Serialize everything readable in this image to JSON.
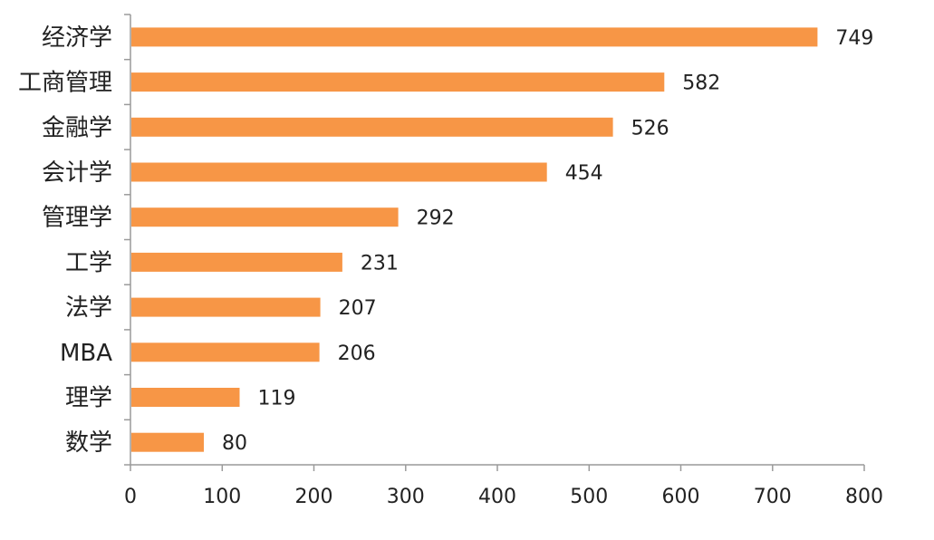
{
  "chart_data": {
    "type": "bar",
    "orientation": "horizontal",
    "categories": [
      "经济学",
      "工商管理",
      "金融学",
      "会计学",
      "管理学",
      "工学",
      "法学",
      "MBA",
      "理学",
      "数学"
    ],
    "values": [
      749,
      582,
      526,
      454,
      292,
      231,
      207,
      206,
      119,
      80
    ],
    "data_labels": [
      "749",
      "582",
      "526",
      "454",
      "292",
      "231",
      "207",
      "206",
      "119",
      "80"
    ],
    "xlim": [
      0,
      800
    ],
    "x_ticks": [
      "0",
      "100",
      "200",
      "300",
      "400",
      "500",
      "600",
      "700",
      "800"
    ],
    "x_tick_values": [
      0,
      100,
      200,
      300,
      400,
      500,
      600,
      700,
      800
    ],
    "grid": false,
    "legend": "none",
    "bar_color": "#F79646",
    "axis_color": "#9a9a9a",
    "text_color": "#222222"
  }
}
